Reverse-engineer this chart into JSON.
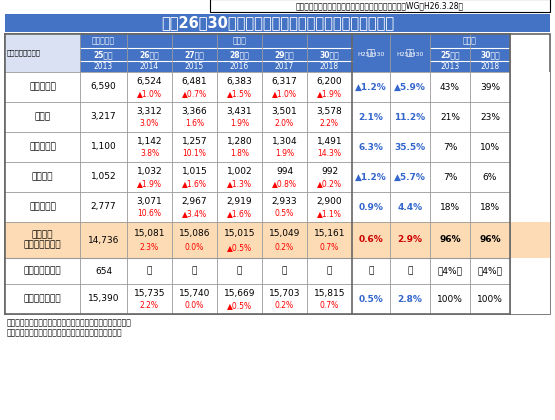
{
  "title": "平成26～30年度石油製品需要見通し（液化石油ガス）",
  "source": "【出典】石油・天然ガス小委員会　石油市場動向調査WG（H26.3.28）",
  "unit_label": "（単位：千トン）",
  "rows": [
    {
      "label": "家庭業務用",
      "values": [
        "6,590",
        "6,524",
        "6,481",
        "6,383",
        "6,317",
        "6,200"
      ],
      "pct": [
        "",
        "▲1.0%",
        "▲0.7%",
        "▲1.5%",
        "▲1.0%",
        "▲1.9%"
      ],
      "pct_colors": [
        "",
        "red",
        "red",
        "red",
        "red",
        "red"
      ],
      "annual": "▲1.2%",
      "annual_color": "#3366CC",
      "total": "▲5.9%",
      "total_color": "#3366CC",
      "comp25": "43%",
      "comp30": "39%",
      "highlight": false,
      "label_bold": false
    },
    {
      "label": "工業用",
      "values": [
        "3,217",
        "3,312",
        "3,366",
        "3,431",
        "3,501",
        "3,578"
      ],
      "pct": [
        "",
        "3.0%",
        "1.6%",
        "1.9%",
        "2.0%",
        "2.2%"
      ],
      "pct_colors": [
        "",
        "red",
        "red",
        "red",
        "red",
        "red"
      ],
      "annual": "2.1%",
      "annual_color": "#3366CC",
      "total": "11.2%",
      "total_color": "#3366CC",
      "comp25": "21%",
      "comp30": "23%",
      "highlight": false,
      "label_bold": false
    },
    {
      "label": "都市ガス用",
      "values": [
        "1,100",
        "1,142",
        "1,257",
        "1,280",
        "1,304",
        "1,491"
      ],
      "pct": [
        "",
        "3.8%",
        "10.1%",
        "1.8%",
        "1.9%",
        "14.3%"
      ],
      "pct_colors": [
        "",
        "red",
        "red",
        "red",
        "red",
        "red"
      ],
      "annual": "6.3%",
      "annual_color": "#3366CC",
      "total": "35.5%",
      "total_color": "#3366CC",
      "comp25": "7%",
      "comp30": "10%",
      "highlight": false,
      "label_bold": false
    },
    {
      "label": "自動車用",
      "values": [
        "1,052",
        "1,032",
        "1,015",
        "1,002",
        "994",
        "992"
      ],
      "pct": [
        "",
        "▲1.9%",
        "▲1.6%",
        "▲1.3%",
        "▲0.8%",
        "▲0.2%"
      ],
      "pct_colors": [
        "",
        "red",
        "red",
        "red",
        "red",
        "red"
      ],
      "annual": "▲1.2%",
      "annual_color": "#3366CC",
      "total": "▲5.7%",
      "total_color": "#3366CC",
      "comp25": "7%",
      "comp30": "6%",
      "highlight": false,
      "label_bold": false
    },
    {
      "label": "化学原料用",
      "values": [
        "2,777",
        "3,071",
        "2,967",
        "2,919",
        "2,933",
        "2,900"
      ],
      "pct": [
        "",
        "10.6%",
        "▲3.4%",
        "▲1.6%",
        "0.5%",
        "▲1.1%"
      ],
      "pct_colors": [
        "",
        "red",
        "red",
        "red",
        "red",
        "red"
      ],
      "annual": "0.9%",
      "annual_color": "#3366CC",
      "total": "4.4%",
      "total_color": "#3366CC",
      "comp25": "18%",
      "comp30": "18%",
      "highlight": false,
      "label_bold": false
    },
    {
      "label": "需要合計\n（電力用除く）",
      "values": [
        "14,736",
        "15,081",
        "15,086",
        "15,015",
        "15,049",
        "15,161"
      ],
      "pct": [
        "",
        "2.3%",
        "0.0%",
        "▲0.5%",
        "0.2%",
        "0.7%"
      ],
      "pct_colors": [
        "",
        "red",
        "red",
        "red",
        "red",
        "red"
      ],
      "annual": "0.6%",
      "annual_color": "#CC0000",
      "total": "2.9%",
      "total_color": "#CC0000",
      "comp25": "96%",
      "comp30": "96%",
      "highlight": true,
      "label_bold": true
    },
    {
      "label": "電力用（参考）",
      "values": [
        "654",
        "－",
        "－",
        "－",
        "－",
        "－"
      ],
      "pct": [
        "",
        "",
        "",
        "",
        "",
        ""
      ],
      "pct_colors": [
        "",
        "black",
        "black",
        "black",
        "black",
        "black"
      ],
      "annual": "－",
      "annual_color": "black",
      "total": "－",
      "total_color": "black",
      "comp25": "（4%）",
      "comp30": "（4%）",
      "highlight": false,
      "label_bold": false
    },
    {
      "label": "需要計（参考）",
      "values": [
        "15,390",
        "15,735",
        "15,740",
        "15,669",
        "15,703",
        "15,815"
      ],
      "pct": [
        "",
        "2.2%",
        "0.0%",
        "▲0.5%",
        "0.2%",
        "0.7%"
      ],
      "pct_colors": [
        "",
        "red",
        "red",
        "red",
        "red",
        "red"
      ],
      "annual": "0.5%",
      "annual_color": "#3366CC",
      "total": "2.8%",
      "total_color": "#3366CC",
      "comp25": "100%",
      "comp30": "100%",
      "highlight": false,
      "label_bold": false
    }
  ],
  "notes": [
    "（注１）上段の数字は液化石油ガス内需量　　単位：千トン",
    "（注２）下段の数字は前年度比　　　　　　　単位：％"
  ],
  "colors": {
    "title_bg": "#4472C4",
    "header_bg": "#4472C4",
    "header_text": "#FFFFFF",
    "highlight_bg": "#FDDCB5",
    "highlight_right_bg": "#FDDCB5",
    "grid": "#AAAAAA",
    "outer_border": "#666666",
    "white": "#FFFFFF",
    "light_header_bg": "#D9E1F2"
  }
}
